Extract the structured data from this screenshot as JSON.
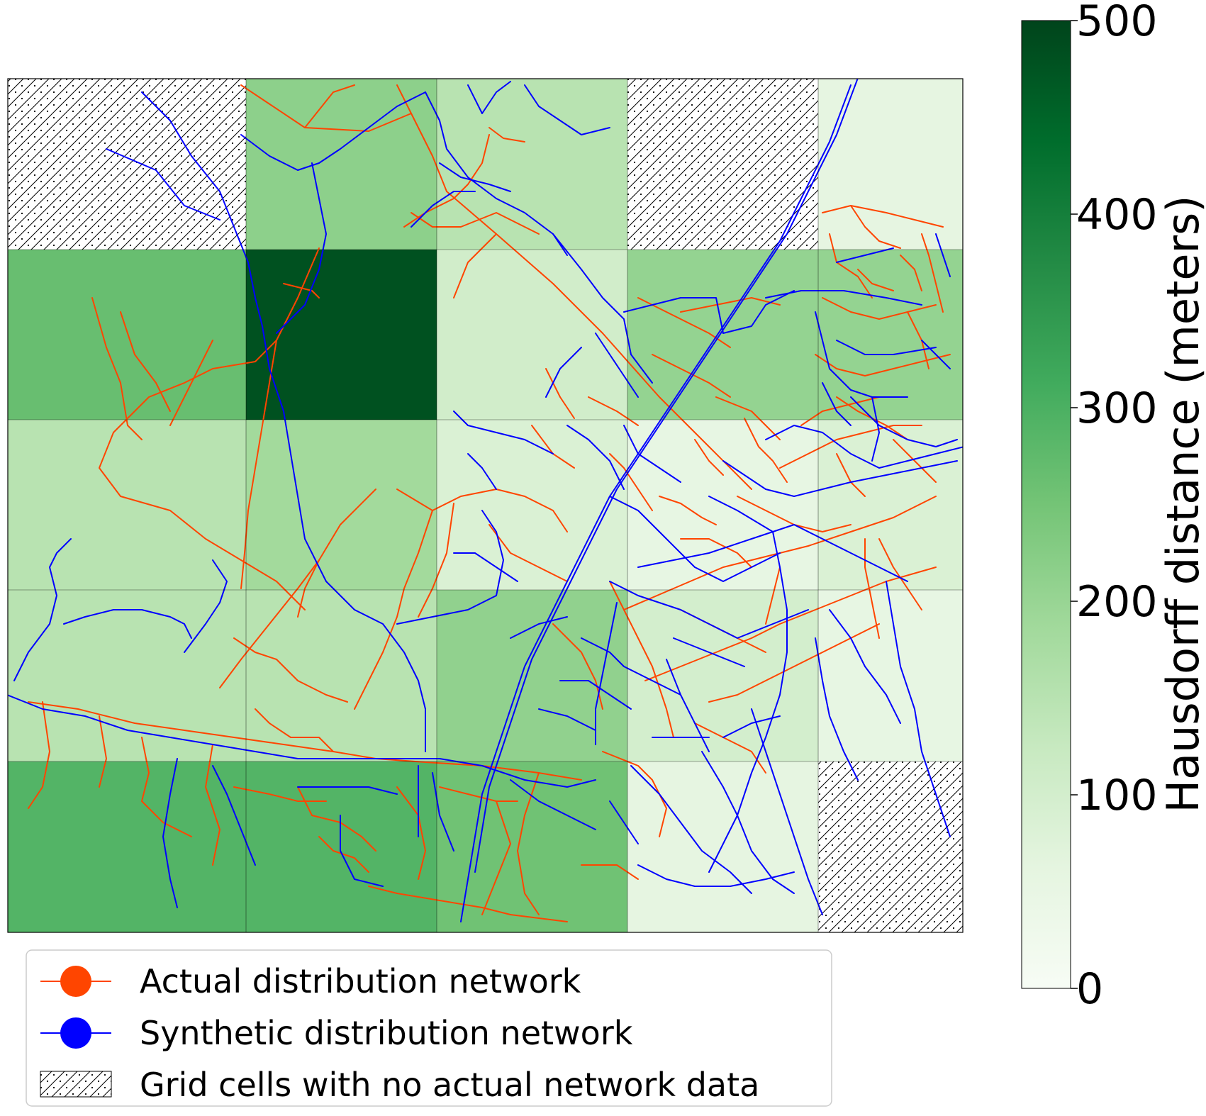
{
  "chart_data": {
    "type": "heatmap",
    "grid": {
      "rows": 5,
      "cols": 5,
      "cell_values": [
        [
          null,
          215,
          150,
          null,
          60
        ],
        [
          265,
          480,
          105,
          205,
          205
        ],
        [
          150,
          185,
          85,
          55,
          85
        ],
        [
          150,
          150,
          210,
          100,
          55
        ],
        [
          290,
          290,
          255,
          60,
          null
        ]
      ]
    },
    "colorbar": {
      "label": "Hausdorff distance (meters)",
      "min": 0,
      "max": 500,
      "ticks": [
        "0",
        "100",
        "200",
        "300",
        "400",
        "500"
      ],
      "colormap": [
        "#f7fcf5",
        "#e5f5e0",
        "#c7e9c0",
        "#a1d99b",
        "#74c476",
        "#41ab5d",
        "#238b45",
        "#006d2c",
        "#00441b"
      ]
    },
    "legend": {
      "placement": "below",
      "entries": [
        {
          "label": "Actual distribution network",
          "color": "#ff4500",
          "marker": "circle-line"
        },
        {
          "label": "Synthetic distribution network",
          "color": "#0000ff",
          "marker": "circle-line"
        },
        {
          "label": "Grid cells with no actual network data",
          "color": "#000000",
          "marker": "hatch"
        }
      ]
    },
    "series": [
      {
        "label": "Actual distribution network",
        "color": "#ff4500"
      },
      {
        "label": "Synthetic distribution network",
        "color": "#0000ff"
      }
    ]
  }
}
